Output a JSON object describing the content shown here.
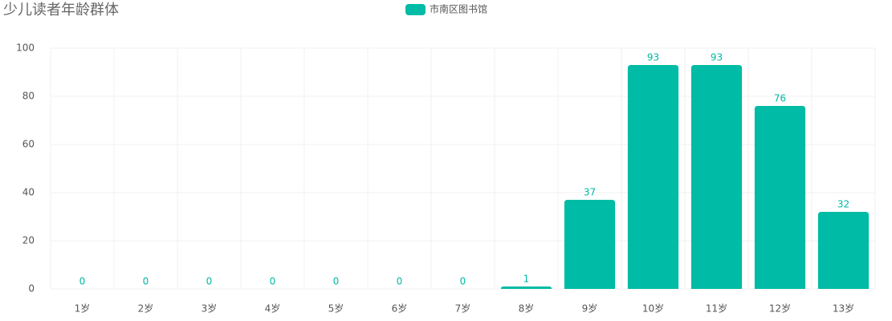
{
  "chart_data": {
    "type": "bar",
    "title": "少儿读者年龄群体",
    "categories": [
      "1岁",
      "2岁",
      "3岁",
      "4岁",
      "5岁",
      "6岁",
      "7岁",
      "8岁",
      "9岁",
      "10岁",
      "11岁",
      "12岁",
      "13岁"
    ],
    "series": [
      {
        "name": "市南区图书馆",
        "color": "#00bba5",
        "values": [
          0,
          0,
          0,
          0,
          0,
          0,
          0,
          1,
          37,
          93,
          93,
          76,
          32
        ]
      }
    ],
    "ylim": [
      0,
      100
    ],
    "yticks": [
      0,
      20,
      40,
      60,
      80,
      100
    ],
    "grid": true
  }
}
